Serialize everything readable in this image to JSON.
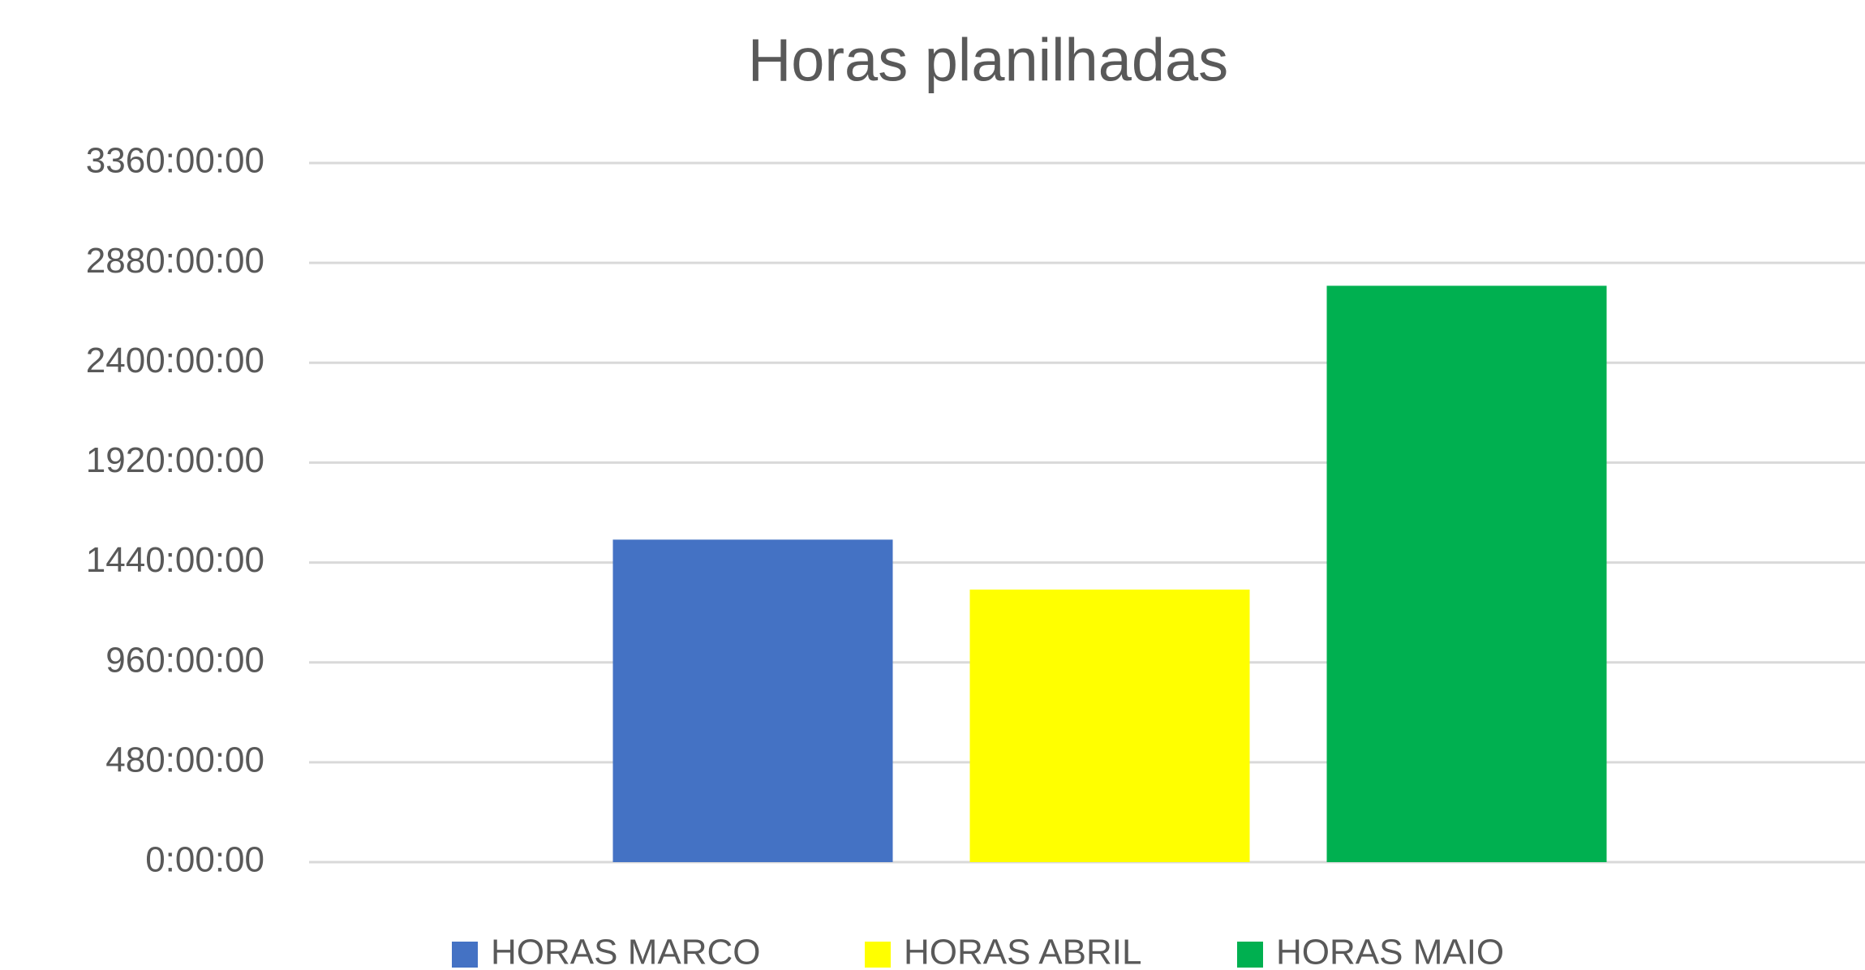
{
  "chart_data": {
    "type": "bar",
    "title": "Horas planilhadas",
    "categories": [
      null
    ],
    "series": [
      {
        "name": "HORAS MARCO",
        "color": "#4472c4",
        "values": [
          1550
        ]
      },
      {
        "name": "HORAS ABRIL",
        "color": "#ffff00",
        "values": [
          1310
        ]
      },
      {
        "name": "HORAS MAIO",
        "color": "#00b050",
        "values": [
          2770
        ]
      }
    ],
    "ylim": [
      0,
      3360
    ],
    "yticks": [
      {
        "value": 0,
        "label": "0:00:00"
      },
      {
        "value": 480,
        "label": "480:00:00"
      },
      {
        "value": 960,
        "label": "960:00:00"
      },
      {
        "value": 1440,
        "label": "1440:00:00"
      },
      {
        "value": 1920,
        "label": "1920:00:00"
      },
      {
        "value": 2400,
        "label": "2400:00:00"
      },
      {
        "value": 2880,
        "label": "2880:00:00"
      },
      {
        "value": 3360,
        "label": "3360:00:00"
      }
    ],
    "grid": true,
    "legend": "bottom"
  }
}
